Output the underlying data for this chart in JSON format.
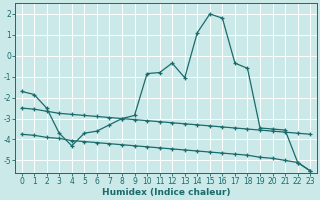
{
  "xlabel": "Humidex (Indice chaleur)",
  "background_color": "#cce9e9",
  "grid_color": "#ffffff",
  "line_color": "#1a6b6b",
  "xlim": [
    -0.5,
    23.5
  ],
  "ylim": [
    -5.6,
    2.5
  ],
  "x_ticks": [
    0,
    1,
    2,
    3,
    4,
    5,
    6,
    7,
    8,
    9,
    10,
    11,
    12,
    13,
    14,
    15,
    16,
    17,
    18,
    19,
    20,
    21,
    22,
    23
  ],
  "y_ticks": [
    -5,
    -4,
    -3,
    -2,
    -1,
    0,
    1,
    2
  ],
  "line1_y": [
    -1.7,
    -1.85,
    -2.5,
    -3.7,
    -4.3,
    -3.7,
    -3.6,
    -3.3,
    -3.0,
    -2.85,
    -0.85,
    -0.8,
    -0.35,
    -1.05,
    1.1,
    2.0,
    1.8,
    -0.35,
    -0.6,
    -3.45,
    -3.5,
    -3.55,
    -5.1,
    -5.5
  ],
  "line2_y": [
    -2.5,
    -2.55,
    -2.65,
    -2.75,
    -2.8,
    -2.85,
    -2.9,
    -2.95,
    -3.0,
    -3.05,
    -3.1,
    -3.15,
    -3.2,
    -3.25,
    -3.3,
    -3.35,
    -3.4,
    -3.45,
    -3.5,
    -3.55,
    -3.6,
    -3.65,
    -3.7,
    -3.75
  ],
  "line3_y": [
    -3.75,
    -3.8,
    -3.9,
    -3.95,
    -4.05,
    -4.1,
    -4.15,
    -4.2,
    -4.25,
    -4.3,
    -4.35,
    -4.4,
    -4.45,
    -4.5,
    -4.55,
    -4.6,
    -4.65,
    -4.7,
    -4.75,
    -4.85,
    -4.9,
    -5.0,
    -5.1,
    -5.5
  ]
}
